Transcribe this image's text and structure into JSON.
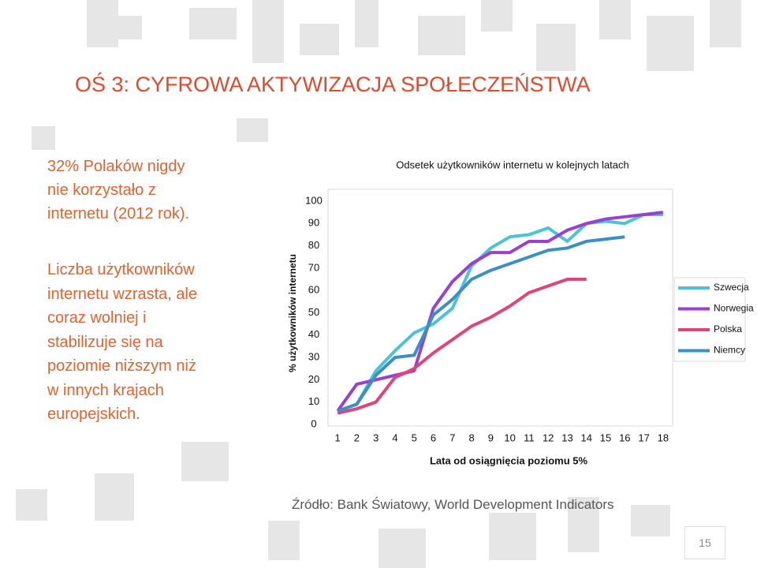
{
  "title": "OŚ 3: CYFROWA AKTYWIZACJA SPOŁECZEŃSTWA",
  "lead_lines": [
    "32% Polaków nigdy",
    "nie korzystało z",
    "internetu (2012 rok)."
  ],
  "body_lines": [
    "Liczba użytkowników",
    "internetu wzrasta, ale",
    "coraz wolniej i",
    "stabilizuje się na",
    "poziomie niższym niż",
    "w innych krajach",
    "europejskich."
  ],
  "source": "Źródło: Bank Światowy, World Development Indicators",
  "page_number": "15",
  "chart_data": {
    "type": "line",
    "title": "Odsetek użytkowników internetu w kolejnych latach",
    "x_label": "Lata od osiągnięcia poziomu 5%",
    "y_label": "% użytkowników internetu",
    "x": [
      1,
      2,
      3,
      4,
      5,
      6,
      7,
      8,
      9,
      10,
      11,
      12,
      13,
      14,
      15,
      16,
      17,
      18
    ],
    "xlim": [
      0.5,
      18.5
    ],
    "xticks": [
      1,
      2,
      3,
      4,
      5,
      6,
      7,
      8,
      9,
      10,
      11,
      12,
      13,
      14,
      15,
      16,
      17,
      18
    ],
    "ylim": [
      0,
      100
    ],
    "yticks": [
      0,
      10,
      20,
      30,
      40,
      50,
      60,
      70,
      80,
      90,
      100
    ],
    "legend": "right",
    "series": [
      {
        "name": "Szwecja",
        "color": "#4bc3d5",
        "values": [
          6,
          9,
          24,
          33,
          41,
          45,
          52,
          71,
          79,
          84,
          85,
          88,
          82,
          90,
          91,
          90,
          94,
          94
        ]
      },
      {
        "name": "Norwegia",
        "color": "#9a40cf",
        "values": [
          6,
          18,
          20,
          22,
          24,
          52,
          64,
          72,
          77,
          77,
          82,
          82,
          87,
          90,
          92,
          93,
          94,
          95
        ]
      },
      {
        "name": "Polska",
        "color": "#df4579",
        "values": [
          5,
          7,
          10,
          21,
          25,
          32,
          38,
          44,
          48,
          53,
          59,
          62,
          65,
          65,
          null,
          null,
          null,
          null
        ]
      },
      {
        "name": "Niemcy",
        "color": "#3a8fc6",
        "values": [
          6,
          9,
          22,
          30,
          31,
          49,
          56,
          65,
          69,
          72,
          75,
          78,
          79,
          82,
          83,
          84,
          null,
          null
        ]
      }
    ]
  }
}
